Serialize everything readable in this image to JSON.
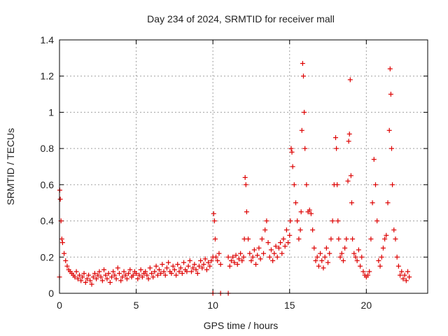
{
  "chart_data": {
    "type": "scatter",
    "title": "Day 234 of 2024, SRMTID for receiver mall",
    "xlabel": "GPS time / hours",
    "ylabel": "SRMTID / TECUs",
    "xlim": [
      0,
      24
    ],
    "ylim": [
      0,
      1.4
    ],
    "xticks": [
      0,
      5,
      10,
      15,
      20
    ],
    "xtick_labels": [
      "0",
      "5",
      "10",
      "15",
      "20"
    ],
    "yticks": [
      0,
      0.2,
      0.4,
      0.6,
      0.8,
      1.0,
      1.2,
      1.4
    ],
    "ytick_labels": [
      "0",
      "0.2",
      "0.4",
      "0.6",
      "0.8",
      "1",
      "1.2",
      "1.4"
    ],
    "grid": true,
    "marker": "+",
    "series_color": "#dd0000",
    "series": [
      {
        "name": "SRMTID",
        "x": [
          0.0,
          0.02,
          0.05,
          0.1,
          0.15,
          0.2,
          0.3,
          0.4,
          0.5,
          0.6,
          0.7,
          0.8,
          0.9,
          1.0,
          1.1,
          1.2,
          1.3,
          1.4,
          1.5,
          1.6,
          1.7,
          1.8,
          1.9,
          2.0,
          2.1,
          2.2,
          2.3,
          2.4,
          2.5,
          2.6,
          2.7,
          2.8,
          2.9,
          3.0,
          3.1,
          3.2,
          3.3,
          3.4,
          3.5,
          3.6,
          3.7,
          3.8,
          3.9,
          4.0,
          4.1,
          4.2,
          4.3,
          4.4,
          4.5,
          4.6,
          4.7,
          4.8,
          4.9,
          5.0,
          5.1,
          5.2,
          5.3,
          5.4,
          5.5,
          5.6,
          5.7,
          5.8,
          5.9,
          6.0,
          6.1,
          6.2,
          6.3,
          6.4,
          6.5,
          6.6,
          6.7,
          6.8,
          6.9,
          7.0,
          7.1,
          7.2,
          7.3,
          7.4,
          7.5,
          7.6,
          7.7,
          7.8,
          7.9,
          8.0,
          8.1,
          8.2,
          8.3,
          8.4,
          8.5,
          8.6,
          8.7,
          8.8,
          8.9,
          9.0,
          9.1,
          9.2,
          9.3,
          9.4,
          9.5,
          9.6,
          9.7,
          9.8,
          9.9,
          10.0,
          10.05,
          10.1,
          10.15,
          10.2,
          10.3,
          10.4,
          10.5,
          11.0,
          11.1,
          11.2,
          11.3,
          11.4,
          11.5,
          11.6,
          11.7,
          11.8,
          11.9,
          12.0,
          12.05,
          12.1,
          12.15,
          12.2,
          12.3,
          12.4,
          12.5,
          12.6,
          12.7,
          12.8,
          12.9,
          13.0,
          13.1,
          13.2,
          13.3,
          13.4,
          13.5,
          13.6,
          13.7,
          13.8,
          13.9,
          14.0,
          14.1,
          14.2,
          14.3,
          14.4,
          14.5,
          14.6,
          14.7,
          14.8,
          14.9,
          15.0,
          15.05,
          15.1,
          15.15,
          15.2,
          15.3,
          15.4,
          15.5,
          15.6,
          15.7,
          15.75,
          15.8,
          15.85,
          15.9,
          15.95,
          16.0,
          16.1,
          16.2,
          16.3,
          16.4,
          16.5,
          16.6,
          16.7,
          16.8,
          16.9,
          17.0,
          17.1,
          17.2,
          17.3,
          17.4,
          17.5,
          17.6,
          17.7,
          17.8,
          17.9,
          18.0,
          18.05,
          18.1,
          18.15,
          18.2,
          18.3,
          18.4,
          18.5,
          18.6,
          18.7,
          18.8,
          18.85,
          18.9,
          18.95,
          19.0,
          19.05,
          19.1,
          19.2,
          19.3,
          19.4,
          19.5,
          19.6,
          19.7,
          19.8,
          19.9,
          20.0,
          20.1,
          20.2,
          20.3,
          20.4,
          20.5,
          20.6,
          20.7,
          20.8,
          20.9,
          21.0,
          21.1,
          21.2,
          21.3,
          21.4,
          21.5,
          21.55,
          21.6,
          21.65,
          21.7,
          21.8,
          21.9,
          22.0,
          22.1,
          22.2,
          22.3,
          22.4,
          22.5,
          22.6,
          22.7,
          22.8,
          10.0,
          10.5,
          11.0
        ],
        "y": [
          0.09,
          0.57,
          0.52,
          0.4,
          0.3,
          0.28,
          0.22,
          0.18,
          0.15,
          0.13,
          0.12,
          0.11,
          0.1,
          0.09,
          0.12,
          0.08,
          0.1,
          0.07,
          0.09,
          0.11,
          0.06,
          0.08,
          0.1,
          0.07,
          0.05,
          0.09,
          0.11,
          0.08,
          0.1,
          0.12,
          0.09,
          0.07,
          0.13,
          0.1,
          0.08,
          0.11,
          0.06,
          0.09,
          0.12,
          0.1,
          0.08,
          0.14,
          0.11,
          0.07,
          0.09,
          0.12,
          0.1,
          0.08,
          0.11,
          0.13,
          0.09,
          0.1,
          0.12,
          0.11,
          0.08,
          0.1,
          0.13,
          0.09,
          0.11,
          0.12,
          0.1,
          0.08,
          0.14,
          0.11,
          0.09,
          0.12,
          0.15,
          0.1,
          0.13,
          0.11,
          0.16,
          0.12,
          0.1,
          0.14,
          0.17,
          0.12,
          0.11,
          0.15,
          0.13,
          0.1,
          0.16,
          0.12,
          0.14,
          0.11,
          0.17,
          0.13,
          0.12,
          0.15,
          0.18,
          0.12,
          0.14,
          0.16,
          0.13,
          0.11,
          0.15,
          0.18,
          0.14,
          0.16,
          0.19,
          0.13,
          0.17,
          0.15,
          0.18,
          0.2,
          0.44,
          0.4,
          0.3,
          0.2,
          0.18,
          0.22,
          0.16,
          0.2,
          0.15,
          0.18,
          0.2,
          0.17,
          0.21,
          0.16,
          0.19,
          0.22,
          0.18,
          0.2,
          0.3,
          0.64,
          0.6,
          0.45,
          0.3,
          0.22,
          0.18,
          0.2,
          0.24,
          0.16,
          0.21,
          0.25,
          0.19,
          0.3,
          0.22,
          0.35,
          0.4,
          0.28,
          0.2,
          0.24,
          0.18,
          0.22,
          0.26,
          0.2,
          0.25,
          0.28,
          0.22,
          0.3,
          0.26,
          0.35,
          0.28,
          0.32,
          0.4,
          0.8,
          0.78,
          0.7,
          0.6,
          0.5,
          0.4,
          0.3,
          0.35,
          0.45,
          0.9,
          1.27,
          1.2,
          1.0,
          0.8,
          0.6,
          0.45,
          0.46,
          0.44,
          0.35,
          0.25,
          0.18,
          0.2,
          0.15,
          0.22,
          0.18,
          0.14,
          0.2,
          0.25,
          0.17,
          0.22,
          0.3,
          0.4,
          0.6,
          0.86,
          0.8,
          0.6,
          0.4,
          0.3,
          0.2,
          0.22,
          0.18,
          0.25,
          0.3,
          0.62,
          0.84,
          0.88,
          1.18,
          0.65,
          0.5,
          0.3,
          0.22,
          0.2,
          0.18,
          0.24,
          0.15,
          0.2,
          0.12,
          0.1,
          0.09,
          0.1,
          0.12,
          0.3,
          0.5,
          0.74,
          0.6,
          0.4,
          0.18,
          0.15,
          0.2,
          0.25,
          0.3,
          0.32,
          0.5,
          0.9,
          1.24,
          1.1,
          0.8,
          0.6,
          0.35,
          0.3,
          0.2,
          0.15,
          0.1,
          0.12,
          0.08,
          0.1,
          0.07,
          0.12,
          0.09,
          0.0,
          0.0,
          0.0
        ]
      }
    ]
  }
}
